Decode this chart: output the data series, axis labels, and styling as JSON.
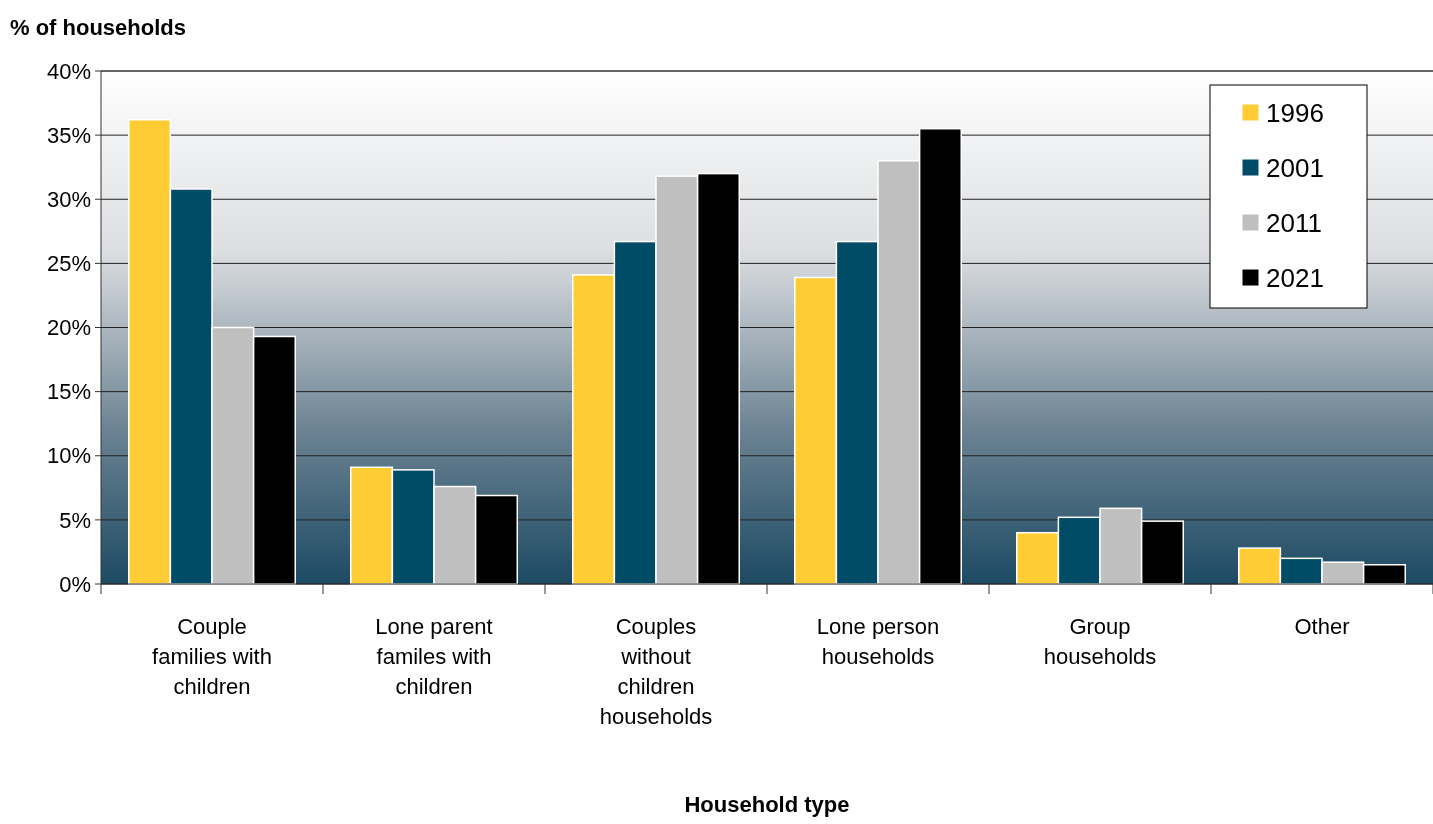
{
  "chart_data": {
    "type": "bar",
    "xlabel": "Household type",
    "ylabel": "% of households",
    "categories": [
      "Couple families with children",
      "Lone parent familes with children",
      "Couples without children households",
      "Lone person households",
      "Group households",
      "Other"
    ],
    "series": [
      {
        "name": "1996",
        "color": "#ffcc33",
        "values": [
          36.2,
          9.1,
          24.1,
          23.9,
          4.0,
          2.8
        ]
      },
      {
        "name": "2001",
        "color": "#004c66",
        "values": [
          30.8,
          8.9,
          26.7,
          26.7,
          5.2,
          2.0
        ]
      },
      {
        "name": "2011",
        "color": "#bfbfbf",
        "values": [
          20.0,
          7.6,
          31.8,
          33.0,
          5.9,
          1.7
        ]
      },
      {
        "name": "2021",
        "color": "#000000",
        "values": [
          19.3,
          6.9,
          32.0,
          35.5,
          4.9,
          1.5
        ]
      }
    ],
    "ylim": [
      0,
      40
    ],
    "yticks": [
      {
        "value": 0,
        "label": "0%"
      },
      {
        "value": 5,
        "label": "5%"
      },
      {
        "value": 10,
        "label": "10%"
      },
      {
        "value": 15,
        "label": "15%"
      },
      {
        "value": 20,
        "label": "20%"
      },
      {
        "value": 25,
        "label": "25%"
      },
      {
        "value": 30,
        "label": "30%"
      },
      {
        "value": 35,
        "label": "35%"
      },
      {
        "value": 40,
        "label": "40%"
      }
    ],
    "grid": "y",
    "legend": "top right"
  }
}
